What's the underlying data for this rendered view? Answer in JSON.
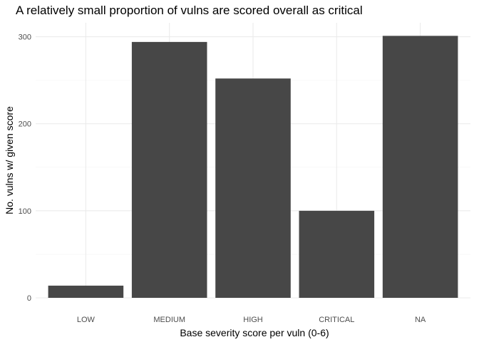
{
  "chart_data": {
    "type": "bar",
    "title": "A relatively small proportion of vulns are scored overall as critical",
    "xlabel": "Base severity score per vuln (0-6)",
    "ylabel": "No. vulns w/ given score",
    "categories": [
      "LOW",
      "MEDIUM",
      "HIGH",
      "CRITICAL",
      "NA"
    ],
    "values": [
      14,
      294,
      252,
      100,
      301
    ],
    "ylim": [
      0,
      316
    ],
    "yticks": [
      0,
      100,
      200,
      300
    ],
    "grid": true,
    "bar_color": "#474747",
    "legend": "none"
  }
}
